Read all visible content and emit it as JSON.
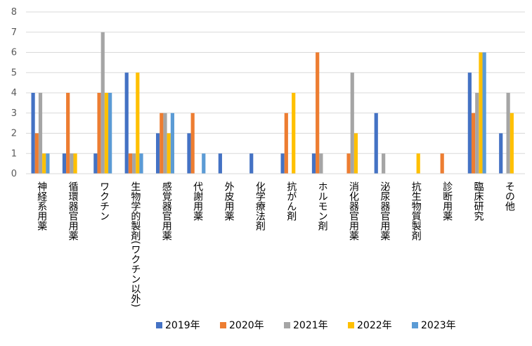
{
  "chart_data": {
    "type": "bar",
    "title": "",
    "xlabel": "",
    "ylabel": "",
    "ylim": [
      0,
      8
    ],
    "yticks": [
      0,
      1,
      2,
      3,
      4,
      5,
      6,
      7,
      8
    ],
    "grid": true,
    "legend_position": "bottom",
    "categories": [
      "神経系用薬",
      "循環器官用薬",
      "ワクチン",
      "生物学的製剤(ワクチン以外)",
      "感覚器官用薬",
      "代謝用薬",
      "外皮用薬",
      "化学療法剤",
      "抗がん剤",
      "ホルモン剤",
      "消化器官用薬",
      "泌尿器官用薬",
      "抗生物質製剤",
      "診断用薬",
      "臨床研究",
      "その他"
    ],
    "series": [
      {
        "name": "2019年",
        "color": "#4472C4",
        "values": [
          4,
          1,
          1,
          5,
          2,
          2,
          1,
          1,
          1,
          1,
          0,
          3,
          0,
          0,
          5,
          2
        ]
      },
      {
        "name": "2020年",
        "color": "#ED7D31",
        "values": [
          2,
          4,
          4,
          1,
          3,
          3,
          0,
          0,
          3,
          6,
          1,
          0,
          0,
          1,
          3,
          0
        ]
      },
      {
        "name": "2021年",
        "color": "#A5A5A5",
        "values": [
          4,
          1,
          7,
          1,
          3,
          0,
          0,
          0,
          0,
          1,
          5,
          1,
          0,
          0,
          4,
          4
        ]
      },
      {
        "name": "2022年",
        "color": "#FFC000",
        "values": [
          1,
          1,
          4,
          5,
          2,
          0,
          0,
          0,
          4,
          0,
          2,
          0,
          1,
          0,
          6,
          3
        ]
      },
      {
        "name": "2023年",
        "color": "#5B9BD5",
        "values": [
          1,
          0,
          4,
          1,
          3,
          1,
          0,
          0,
          0,
          0,
          0,
          0,
          0,
          0,
          6,
          0
        ]
      }
    ]
  }
}
